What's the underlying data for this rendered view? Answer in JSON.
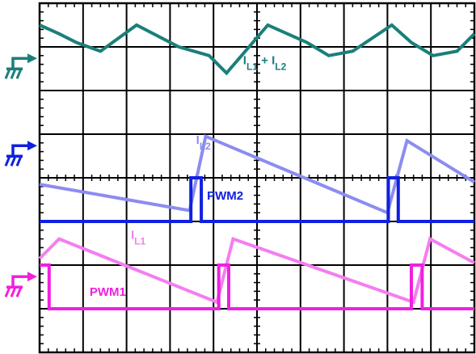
{
  "chart_data": {
    "type": "line",
    "grid": true,
    "divisions": {
      "x": 10,
      "y": 8
    },
    "colors": {
      "sum": "#1a7f7a",
      "il2": "#8c8cf0",
      "pwm2": "#1020e0",
      "il1": "#f47ef0",
      "pwm1": "#f020e0",
      "grid": "#000000"
    },
    "ground_markers": [
      {
        "name": "ground-marker-sum",
        "color_key": "sum",
        "level_div": 6.55
      },
      {
        "name": "ground-marker-pwm2",
        "color_key": "pwm2",
        "level_div": 4.55
      },
      {
        "name": "ground-marker-pwm1",
        "color_key": "pwm1",
        "level_div": 1.55
      }
    ],
    "series": [
      {
        "name": "IL1 + IL2",
        "label_main": "I",
        "label_sub": "L1",
        "label_mid": " + I",
        "label_sub2": "L2",
        "label_at": {
          "x": 4.68,
          "y": 6.6
        },
        "color_key": "sum",
        "x": [
          0,
          0.45,
          0.85,
          1.4,
          2.23,
          3.2,
          3.9,
          4.3,
          5.25,
          6.15,
          6.65,
          7.2,
          8.1,
          8.55,
          9.05,
          9.6,
          10
        ],
        "y": [
          7.5,
          7.3,
          7.1,
          6.9,
          7.5,
          7.0,
          6.8,
          6.4,
          7.5,
          7.1,
          6.8,
          6.9,
          7.5,
          7.1,
          6.8,
          6.9,
          7.3
        ]
      },
      {
        "name": "IL2",
        "label_main": "I",
        "label_sub": "L2",
        "label_at": {
          "x": 3.6,
          "y": 4.78
        },
        "color_key": "il2",
        "x": [
          0,
          3.45,
          3.82,
          8.0,
          8.45,
          10
        ],
        "y": [
          3.85,
          3.25,
          4.95,
          3.2,
          4.85,
          3.9
        ]
      },
      {
        "name": "PWM2",
        "label_main": "PWM2",
        "label_at": {
          "x": 3.85,
          "y": 3.5
        },
        "color_key": "pwm2",
        "x": [
          0,
          3.48,
          3.48,
          3.72,
          3.72,
          8.02,
          8.02,
          8.25,
          8.25,
          10
        ],
        "y": [
          3.0,
          3.0,
          4.0,
          4.0,
          3.0,
          3.0,
          4.0,
          4.0,
          3.0,
          3.0
        ]
      },
      {
        "name": "IL1",
        "label_main": "I",
        "label_sub": "L1",
        "label_at": {
          "x": 2.1,
          "y": 2.6
        },
        "color_key": "il1",
        "x": [
          0,
          0.45,
          4.08,
          4.45,
          8.6,
          8.98,
          10
        ],
        "y": [
          2.15,
          2.6,
          1.15,
          2.6,
          1.15,
          2.6,
          2.05
        ]
      },
      {
        "name": "PWM1",
        "label_main": "PWM1",
        "label_at": {
          "x": 1.15,
          "y": 1.3
        },
        "color_key": "pwm1",
        "x": [
          0,
          0.22,
          0.22,
          4.12,
          4.12,
          4.35,
          4.35,
          8.55,
          8.55,
          8.8,
          8.8,
          10
        ],
        "y": [
          2.0,
          2.0,
          1.0,
          1.0,
          2.0,
          2.0,
          1.0,
          1.0,
          2.0,
          2.0,
          1.0,
          1.0
        ]
      }
    ]
  }
}
